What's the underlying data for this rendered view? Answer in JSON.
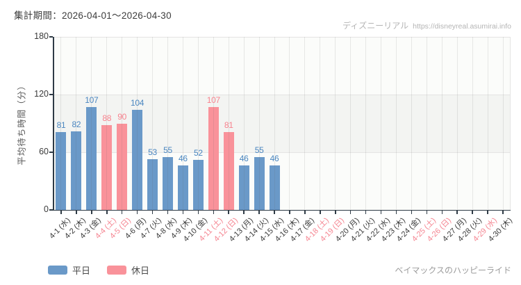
{
  "header": {
    "title": "集計期間：2026-04-01～2026-04-30",
    "watermark_name": "ディズニーリアル",
    "watermark_url": "https://disneyreal.asumirai.info"
  },
  "footer": {
    "attraction": "ベイマックスのハッピーライド"
  },
  "colors": {
    "weekday_bar": "#6a99c8",
    "holiday_bar": "#f9929a",
    "weekday_label": "#4a86c0",
    "holiday_label": "#f8828e",
    "weekday_tick": "#3a3a3a",
    "holiday_tick": "#f58490",
    "band_gray": "#f3f4f2",
    "band_light": "#fbfcfa",
    "axis": "#2e3a45"
  },
  "legend": {
    "items": [
      {
        "label": "平日",
        "type": "weekday",
        "color": "#6a99c8"
      },
      {
        "label": "休日",
        "type": "holiday",
        "color": "#f9929a"
      }
    ]
  },
  "chart_data": {
    "type": "bar",
    "title": "集計期間：2026-04-01～2026-04-30",
    "xlabel": "",
    "ylabel": "平均待ち時間（分）",
    "ylim": [
      0,
      180
    ],
    "yticks": [
      0,
      60,
      120,
      180
    ],
    "grid": "vertical gridlines at each category; alternating horizontal bands (60-120 shaded)",
    "legend_position": "bottom-left",
    "categories": [
      "4-1 (水)",
      "4-2 (木)",
      "4-3 (金)",
      "4-4 (土)",
      "4-5 (日)",
      "4-6 (月)",
      "4-7 (火)",
      "4-8 (水)",
      "4-9 (木)",
      "4-10 (金)",
      "4-11 (土)",
      "4-12 (日)",
      "4-13 (月)",
      "4-14 (火)",
      "4-15 (水)",
      "4-16 (木)",
      "4-17 (金)",
      "4-18 (土)",
      "4-19 (日)",
      "4-20 (月)",
      "4-21 (火)",
      "4-22 (水)",
      "4-23 (木)",
      "4-24 (金)",
      "4-25 (土)",
      "4-26 (日)",
      "4-27 (月)",
      "4-28 (火)",
      "4-29 (水)",
      "4-30 (木)"
    ],
    "values": [
      81,
      82,
      107,
      88,
      90,
      104,
      53,
      55,
      46,
      52,
      107,
      81,
      46,
      55,
      46,
      null,
      null,
      null,
      null,
      null,
      null,
      null,
      null,
      null,
      null,
      null,
      null,
      null,
      null,
      null
    ],
    "holiday_flags": [
      false,
      false,
      false,
      true,
      true,
      false,
      false,
      false,
      false,
      false,
      true,
      true,
      false,
      false,
      false,
      false,
      false,
      true,
      true,
      false,
      false,
      false,
      false,
      false,
      true,
      true,
      false,
      false,
      true,
      false
    ],
    "series": [
      {
        "name": "平日",
        "color": "#6a99c8"
      },
      {
        "name": "休日",
        "color": "#f9929a"
      }
    ]
  }
}
